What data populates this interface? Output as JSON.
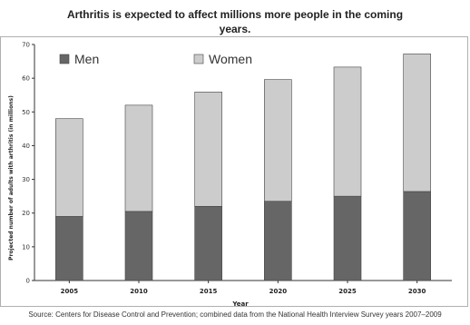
{
  "chart_data": {
    "type": "bar",
    "stacked": true,
    "title_line1": "Arthritis is expected to affect millions more people in the coming",
    "title_line2": "years.",
    "xlabel": "Year",
    "ylabel": "Projected number of adults with arthritis (in millions)",
    "categories": [
      "2005",
      "2010",
      "2015",
      "2020",
      "2025",
      "2030"
    ],
    "series": [
      {
        "name": "Men",
        "values": [
          19,
          20.5,
          22,
          23.5,
          25,
          26.4
        ],
        "color": "#666666"
      },
      {
        "name": "Women",
        "values": [
          29,
          31.5,
          33.9,
          36.1,
          38.3,
          40.8
        ],
        "color": "#cccccc"
      }
    ],
    "ylim": [
      0,
      70
    ],
    "yticks": [
      0,
      10,
      20,
      30,
      40,
      50,
      60,
      70
    ],
    "legend_position": "top-left",
    "grid": false
  },
  "source_text": "Source: Centers for Disease Control and Prevention; combined data from the National Health Interview Survey years 2007–2009"
}
